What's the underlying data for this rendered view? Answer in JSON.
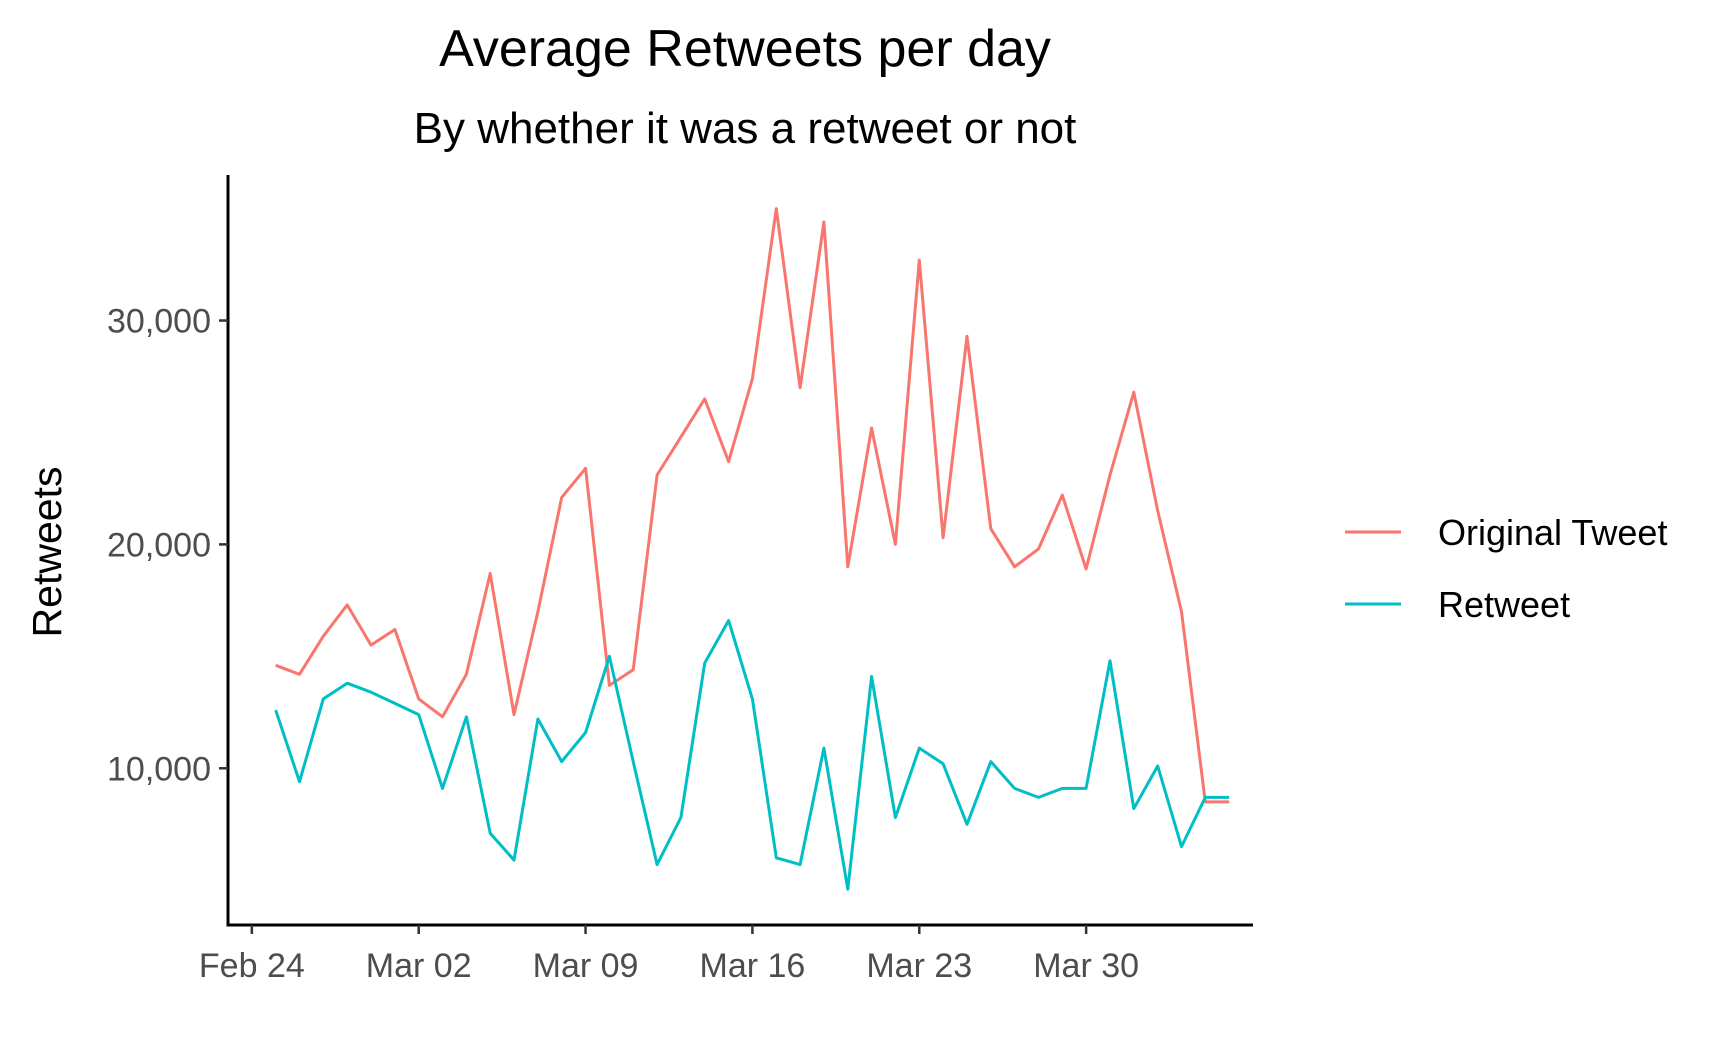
{
  "chart_data": {
    "type": "line",
    "title": "Average Retweets per day",
    "subtitle": "By whether it was a retweet or not",
    "xlabel": "",
    "ylabel": "Retweets",
    "x_type": "date",
    "xlim": [
      "2020-02-23",
      "2020-04-06"
    ],
    "ylim": [
      3000,
      36500
    ],
    "x_ticks": [
      {
        "date": "2020-02-24",
        "label": "Feb 24"
      },
      {
        "date": "2020-03-02",
        "label": "Mar 02"
      },
      {
        "date": "2020-03-09",
        "label": "Mar 09"
      },
      {
        "date": "2020-03-16",
        "label": "Mar 16"
      },
      {
        "date": "2020-03-23",
        "label": "Mar 23"
      },
      {
        "date": "2020-03-30",
        "label": "Mar 30"
      }
    ],
    "y_ticks": [
      {
        "value": 10000,
        "label": "10,000"
      },
      {
        "value": 20000,
        "label": "20,000"
      },
      {
        "value": 30000,
        "label": "30,000"
      }
    ],
    "grid": false,
    "legend_position": "right",
    "x": [
      "2020-02-25",
      "2020-02-26",
      "2020-02-27",
      "2020-02-28",
      "2020-02-29",
      "2020-03-01",
      "2020-03-02",
      "2020-03-03",
      "2020-03-04",
      "2020-03-05",
      "2020-03-06",
      "2020-03-07",
      "2020-03-08",
      "2020-03-09",
      "2020-03-10",
      "2020-03-11",
      "2020-03-12",
      "2020-03-13",
      "2020-03-14",
      "2020-03-15",
      "2020-03-16",
      "2020-03-17",
      "2020-03-18",
      "2020-03-19",
      "2020-03-20",
      "2020-03-21",
      "2020-03-22",
      "2020-03-23",
      "2020-03-24",
      "2020-03-25",
      "2020-03-26",
      "2020-03-27",
      "2020-03-28",
      "2020-03-29",
      "2020-03-30",
      "2020-03-31",
      "2020-04-01",
      "2020-04-02",
      "2020-04-03",
      "2020-04-04",
      "2020-04-05"
    ],
    "series": [
      {
        "name": "Original Tweet",
        "color": "#F8766D",
        "values": [
          14600,
          14200,
          15900,
          17300,
          15500,
          16200,
          13100,
          12300,
          14200,
          18700,
          12400,
          17000,
          22100,
          23400,
          13700,
          14400,
          23100,
          24800,
          26500,
          23700,
          27400,
          35000,
          27000,
          34400,
          19000,
          25200,
          20000,
          32700,
          20300,
          29300,
          20700,
          19000,
          19800,
          22200,
          18900,
          23100,
          26800,
          21500,
          17000,
          8500,
          8500
        ]
      },
      {
        "name": "Retweet",
        "color": "#00BFC4",
        "values": [
          12600,
          9400,
          13100,
          13800,
          13400,
          12900,
          12400,
          9100,
          12300,
          7100,
          5900,
          12200,
          10300,
          11600,
          15000,
          10300,
          5700,
          7800,
          14700,
          16600,
          13100,
          6000,
          5700,
          10900,
          4600,
          14100,
          7800,
          10900,
          10200,
          7500,
          10300,
          9100,
          8700,
          9100,
          9100,
          14800,
          8200,
          10100,
          6500,
          8700,
          8700
        ]
      }
    ]
  }
}
